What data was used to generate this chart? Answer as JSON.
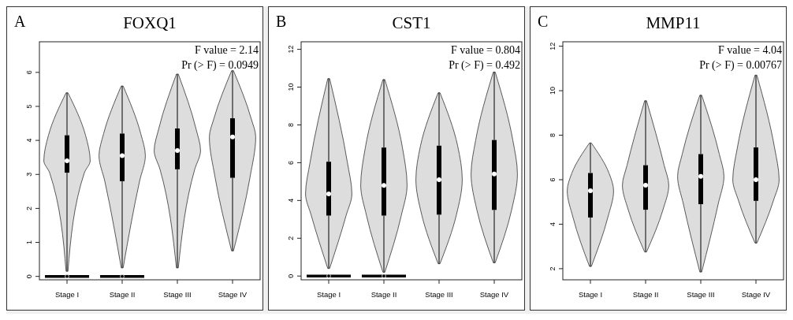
{
  "chart_data": [
    {
      "type": "box",
      "title": "FOXQ1",
      "annotations": [
        "A",
        "F value = 2.14",
        "Pr (> F) = 0.0949"
      ],
      "categories": [
        "Stage I",
        "Stage II",
        "Stage III",
        "Stage IV"
      ],
      "color": "#000000",
      "ylim": [
        -0.1,
        6.9
      ],
      "yticks": [
        0,
        1,
        2,
        3,
        4,
        5,
        6
      ],
      "grid": false,
      "boxes": [
        {
          "low": 0.15,
          "q1": 3.05,
          "median": 3.4,
          "q3": 4.15,
          "high": 5.4,
          "outliers": [
            0
          ]
        },
        {
          "low": 0.25,
          "q1": 2.8,
          "median": 3.55,
          "q3": 4.2,
          "high": 5.6,
          "outliers": [
            0
          ]
        },
        {
          "low": 0.25,
          "q1": 3.15,
          "median": 3.7,
          "q3": 4.35,
          "high": 5.95
        },
        {
          "low": 0.75,
          "q1": 2.9,
          "median": 4.1,
          "q3": 4.65,
          "high": 6.05
        }
      ]
    },
    {
      "type": "box",
      "title": "CST1",
      "annotations": [
        "B",
        "F value = 0.804",
        "Pr (> F) = 0.492"
      ],
      "categories": [
        "Stage I",
        "Stage II",
        "Stage III",
        "Stage IV"
      ],
      "color": "#000000",
      "ylim": [
        -0.2,
        12.4
      ],
      "yticks": [
        0,
        2,
        4,
        6,
        8,
        10,
        12
      ],
      "grid": false,
      "boxes": [
        {
          "low": 0.4,
          "q1": 3.2,
          "median": 4.35,
          "q3": 6.05,
          "high": 10.45,
          "outliers": [
            0
          ]
        },
        {
          "low": 0.2,
          "q1": 3.2,
          "median": 4.8,
          "q3": 6.8,
          "high": 10.4,
          "outliers": [
            0
          ]
        },
        {
          "low": 0.65,
          "q1": 3.25,
          "median": 5.1,
          "q3": 6.9,
          "high": 9.7
        },
        {
          "low": 0.7,
          "q1": 3.5,
          "median": 5.4,
          "q3": 7.2,
          "high": 10.8
        }
      ]
    },
    {
      "type": "box",
      "title": "MMP11",
      "annotations": [
        "C",
        "F value = 4.04",
        "Pr (> F) = 0.00767"
      ],
      "categories": [
        "Stage I",
        "Stage II",
        "Stage III",
        "Stage IV"
      ],
      "color": "#000000",
      "ylim": [
        1.5,
        12.2
      ],
      "yticks": [
        2,
        4,
        6,
        8,
        10,
        12
      ],
      "grid": false,
      "boxes": [
        {
          "low": 2.1,
          "q1": 4.3,
          "median": 5.5,
          "q3": 6.3,
          "high": 7.65
        },
        {
          "low": 2.75,
          "q1": 4.65,
          "median": 5.75,
          "q3": 6.65,
          "high": 9.55
        },
        {
          "low": 1.85,
          "q1": 4.9,
          "median": 6.15,
          "q3": 7.15,
          "high": 9.8
        },
        {
          "low": 3.15,
          "q1": 5.05,
          "median": 6.0,
          "q3": 7.45,
          "high": 10.7
        }
      ]
    }
  ]
}
